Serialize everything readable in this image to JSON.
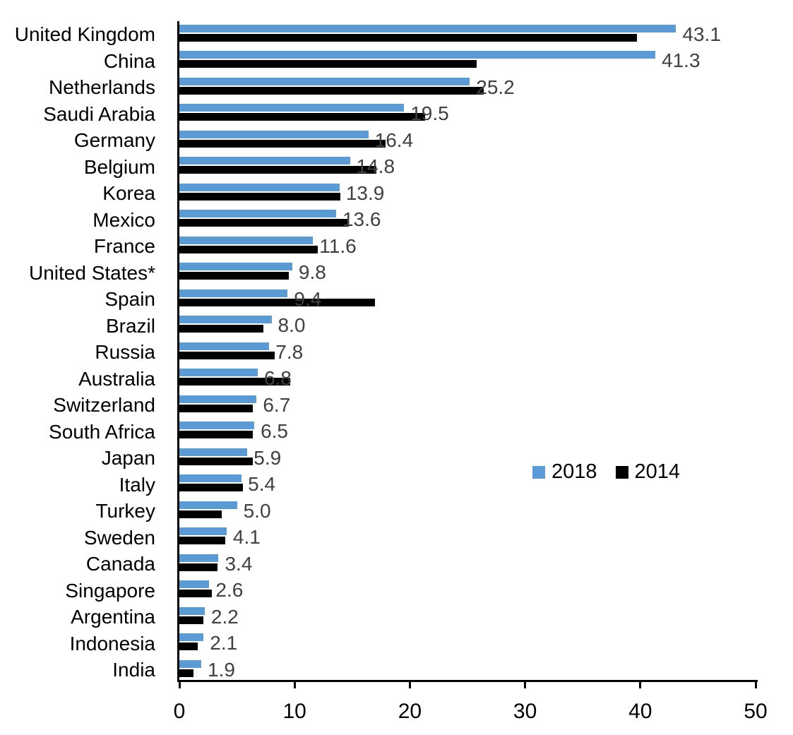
{
  "chart_data": {
    "type": "bar",
    "orientation": "horizontal",
    "title": "",
    "xlabel": "",
    "ylabel": "",
    "categories": [
      "United Kingdom",
      "China",
      "Netherlands",
      "Saudi Arabia",
      "Germany",
      "Belgium",
      "Korea",
      "Mexico",
      "France",
      "United States*",
      "Spain",
      "Brazil",
      "Russia",
      "Australia",
      "Switzerland",
      "South Africa",
      "Japan",
      "Italy",
      "Turkey",
      "Sweden",
      "Canada",
      "Singapore",
      "Argentina",
      "Indonesia",
      "India"
    ],
    "series": [
      {
        "name": "2018",
        "color": "#5B9BD5",
        "data_labels_visible": true,
        "values": [
          43.1,
          41.3,
          25.2,
          19.5,
          16.4,
          14.8,
          13.9,
          13.6,
          11.6,
          9.8,
          9.4,
          8.0,
          7.8,
          6.8,
          6.7,
          6.5,
          5.9,
          5.4,
          5.0,
          4.1,
          3.4,
          2.6,
          2.2,
          2.1,
          1.9
        ]
      },
      {
        "name": "2014",
        "color": "#000000",
        "data_labels_visible": false,
        "values": [
          39.7,
          25.8,
          26.4,
          21.3,
          17.9,
          17.1,
          14.0,
          14.7,
          12.0,
          9.5,
          17.0,
          7.3,
          8.3,
          9.6,
          6.4,
          6.4,
          6.4,
          5.5,
          3.7,
          4.0,
          3.3,
          2.8,
          2.1,
          1.6,
          1.2
        ]
      }
    ],
    "data_label_format": "one-decimal",
    "xlim": [
      0,
      50
    ],
    "x_ticks": [
      "0",
      "10",
      "20",
      "30",
      "40",
      "50"
    ],
    "grid": false,
    "legend": {
      "position": "middle-right",
      "entries": [
        "2018",
        "2014"
      ]
    },
    "styles": {
      "value_label_color": "#404040",
      "axis_color": "#000000",
      "text_color": "#000000",
      "background": "#FFFFFF"
    }
  }
}
